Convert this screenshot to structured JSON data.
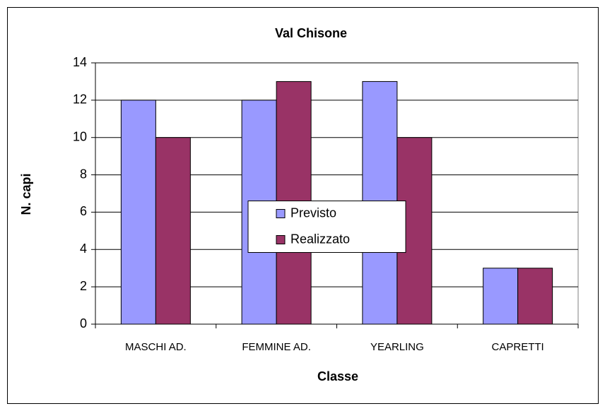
{
  "chart_data": {
    "type": "bar",
    "title": "Val Chisone",
    "x_label": "Classe",
    "y_label": "N. capi",
    "categories": [
      "MASCHI AD.",
      "FEMMINE AD.",
      "YEARLING",
      "CAPRETTI"
    ],
    "series": [
      {
        "name": "Previsto",
        "color": "#9999ff",
        "values": [
          12,
          12,
          13,
          3
        ]
      },
      {
        "name": "Realizzato",
        "color": "#993366",
        "values": [
          10,
          13,
          10,
          3
        ]
      }
    ],
    "ylim": [
      0,
      14
    ],
    "yticks": [
      0,
      2,
      4,
      6,
      8,
      10,
      12,
      14
    ],
    "grid": true,
    "legend": "center"
  }
}
